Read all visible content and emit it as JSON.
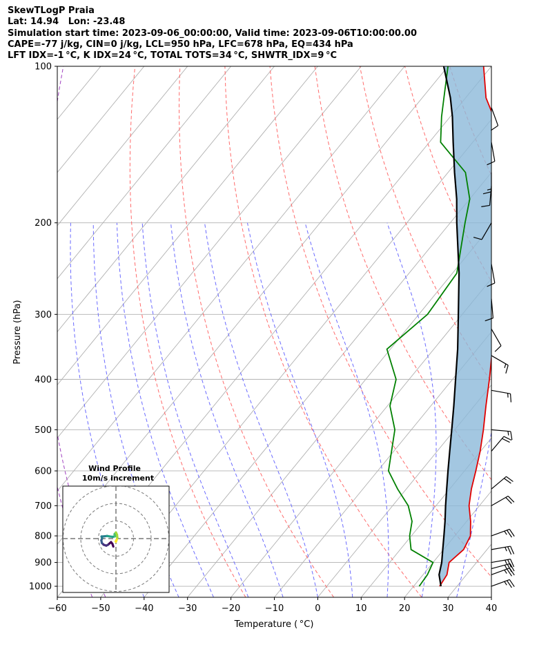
{
  "header": {
    "title": "SkewTLogP Praia",
    "location": "Lat: 14.94   Lon: -23.48",
    "times": "Simulation start time: 2023-09-06_00:00:00, Valid time: 2023-09-06T10:00:00.00",
    "indices1": "CAPE=-77 j/kg, CIN=0 j/kg, LCL=950 hPa, LFC=678 hPa, EQ=434 hPa",
    "indices2": "LFT IDX=-1 °C, K IDX=24 °C, TOTAL TOTS=34 °C, SHWTR_IDX=9 °C"
  },
  "chart_data": {
    "type": "line",
    "subtype": "skew-T log-P diagram",
    "xlabel": "Temperature ( °C)",
    "ylabel": "Pressure (hPa)",
    "xlim": [
      -60,
      40
    ],
    "ylim": [
      1050,
      100
    ],
    "yscale": "log",
    "grid": true,
    "x_ticks": [
      "−60",
      "−50",
      "−40",
      "−30",
      "−20",
      "−10",
      "0",
      "10",
      "20",
      "30",
      "40"
    ],
    "y_ticks": [
      1000,
      900,
      800,
      700,
      600,
      500,
      400,
      300,
      200,
      100
    ],
    "series": [
      {
        "role": "temperature",
        "color": "#e00000",
        "points": [
          [
            26.0,
            1000
          ],
          [
            25.5,
            950
          ],
          [
            23.7,
            900
          ],
          [
            24.6,
            850
          ],
          [
            23.6,
            800
          ],
          [
            20.9,
            750
          ],
          [
            17.6,
            700
          ],
          [
            15.0,
            650
          ],
          [
            12.6,
            600
          ],
          [
            9.9,
            550
          ],
          [
            6.6,
            500
          ],
          [
            2.7,
            450
          ],
          [
            -1.5,
            400
          ],
          [
            -6.5,
            350
          ],
          [
            -12.6,
            300
          ],
          [
            -19.5,
            250
          ],
          [
            -28.0,
            200
          ],
          [
            -33.0,
            180
          ],
          [
            -38.5,
            160
          ],
          [
            -43.8,
            140
          ],
          [
            -50.0,
            125
          ],
          [
            -55.3,
            115
          ],
          [
            -61.8,
            100
          ]
        ]
      },
      {
        "role": "dewpoint",
        "color": "#008000",
        "points": [
          [
            21.3,
            1000
          ],
          [
            21.0,
            950
          ],
          [
            20.0,
            900
          ],
          [
            12.5,
            850
          ],
          [
            9.6,
            800
          ],
          [
            7.4,
            750
          ],
          [
            3.6,
            700
          ],
          [
            -2.0,
            650
          ],
          [
            -7.5,
            600
          ],
          [
            -10.5,
            550
          ],
          [
            -13.8,
            500
          ],
          [
            -19.4,
            450
          ],
          [
            -23.0,
            400
          ],
          [
            -30.8,
            350
          ],
          [
            -28.0,
            300
          ],
          [
            -29.0,
            250
          ],
          [
            -36.6,
            200
          ],
          [
            -40.0,
            180
          ],
          [
            -46.0,
            160
          ],
          [
            -57.4,
            140
          ],
          [
            -62.0,
            125
          ],
          [
            -65.0,
            115
          ],
          [
            -70.0,
            100
          ]
        ]
      },
      {
        "role": "parcel",
        "color": "#000000",
        "points": [
          [
            26.3,
            1000
          ],
          [
            23.7,
            950
          ],
          [
            22.0,
            900
          ],
          [
            19.8,
            850
          ],
          [
            17.5,
            800
          ],
          [
            15.0,
            750
          ],
          [
            12.2,
            700
          ],
          [
            9.3,
            650
          ],
          [
            6.2,
            600
          ],
          [
            2.9,
            550
          ],
          [
            -0.7,
            500
          ],
          [
            -4.7,
            450
          ],
          [
            -9.3,
            400
          ],
          [
            -14.5,
            350
          ],
          [
            -20.9,
            300
          ],
          [
            -28.5,
            250
          ],
          [
            -38.5,
            200
          ],
          [
            -43.0,
            180
          ],
          [
            -48.5,
            160
          ],
          [
            -54.5,
            140
          ],
          [
            -59.5,
            125
          ],
          [
            -63.5,
            115
          ],
          [
            -71.0,
            100
          ]
        ]
      }
    ],
    "cape_shading_color": "#8cb9da",
    "wind_barbs": [
      {
        "pressure": 1000,
        "speed_kt": 25,
        "direction_deg": 70
      },
      {
        "pressure": 950,
        "speed_kt": 25,
        "direction_deg": 70
      },
      {
        "pressure": 925,
        "speed_kt": 25,
        "direction_deg": 75
      },
      {
        "pressure": 900,
        "speed_kt": 25,
        "direction_deg": 80
      },
      {
        "pressure": 850,
        "speed_kt": 25,
        "direction_deg": 80
      },
      {
        "pressure": 800,
        "speed_kt": 25,
        "direction_deg": 70
      },
      {
        "pressure": 700,
        "speed_kt": 20,
        "direction_deg": 60
      },
      {
        "pressure": 650,
        "speed_kt": 20,
        "direction_deg": 50
      },
      {
        "pressure": 550,
        "speed_kt": 20,
        "direction_deg": 40
      },
      {
        "pressure": 500,
        "speed_kt": 15,
        "direction_deg": 95
      },
      {
        "pressure": 420,
        "speed_kt": 15,
        "direction_deg": 100
      },
      {
        "pressure": 360,
        "speed_kt": 15,
        "direction_deg": 120
      },
      {
        "pressure": 320,
        "speed_kt": 10,
        "direction_deg": 150
      },
      {
        "pressure": 280,
        "speed_kt": 10,
        "direction_deg": 175
      },
      {
        "pressure": 240,
        "speed_kt": 10,
        "direction_deg": 170
      },
      {
        "pressure": 200,
        "speed_kt": 10,
        "direction_deg": 210
      },
      {
        "pressure": 170,
        "speed_kt": 10,
        "direction_deg": 185
      },
      {
        "pressure": 160,
        "speed_kt": 15,
        "direction_deg": 180
      },
      {
        "pressure": 140,
        "speed_kt": 10,
        "direction_deg": 170
      },
      {
        "pressure": 120,
        "speed_kt": 10,
        "direction_deg": 160
      }
    ],
    "hodograph": {
      "title": "Wind Profile",
      "subtitle": "10m/s increment",
      "ring_step_ms": 10,
      "points_uv": [
        [
          -1.5,
          -4.5
        ],
        [
          -2.0,
          -3.0
        ],
        [
          -2.8,
          -2.0
        ],
        [
          -4.5,
          -3.5
        ],
        [
          -5.5,
          -4.0
        ],
        [
          -7.0,
          -3.5
        ],
        [
          -8.0,
          -2.5
        ],
        [
          -8.3,
          -1.0
        ],
        [
          -7.8,
          0.2
        ],
        [
          -8.2,
          1.2
        ],
        [
          -6.5,
          1.3
        ],
        [
          -5.0,
          1.5
        ],
        [
          -3.5,
          1.2
        ],
        [
          -1.8,
          1.0
        ],
        [
          -0.5,
          1.3
        ],
        [
          -0.8,
          2.5
        ],
        [
          0.0,
          3.5
        ],
        [
          0.6,
          2.2
        ],
        [
          0.8,
          0.6
        ],
        [
          0.5,
          -0.5
        ],
        [
          0.0,
          -1.8
        ],
        [
          -0.2,
          -1.5
        ]
      ]
    }
  }
}
